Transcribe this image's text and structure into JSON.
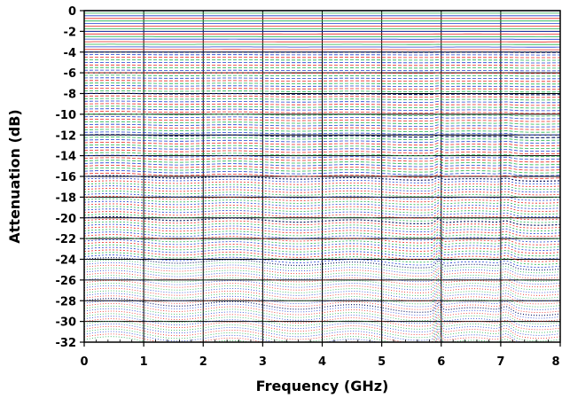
{
  "chart_data": {
    "type": "line",
    "title": "",
    "xlabel": "Frequency (GHz)",
    "ylabel": "Attenuation (dB)",
    "xlim": [
      0,
      8
    ],
    "ylim": [
      -32,
      0
    ],
    "x_ticks": [
      0,
      1,
      2,
      3,
      4,
      5,
      6,
      7,
      8
    ],
    "y_ticks": [
      0,
      -2,
      -4,
      -6,
      -8,
      -10,
      -12,
      -14,
      -16,
      -18,
      -20,
      -22,
      -24,
      -26,
      -28,
      -30,
      -32
    ],
    "x_tick_labels": [
      "0",
      "1",
      "2",
      "3",
      "4",
      "5",
      "6",
      "7",
      "8"
    ],
    "y_tick_labels": [
      "0",
      "-2",
      "-4",
      "-6",
      "-8",
      "-10",
      "-12",
      "-14",
      "-16",
      "-18",
      "-20",
      "-22",
      "-24",
      "-26",
      "-28",
      "-30",
      "-32"
    ],
    "grid": true,
    "legend": "none",
    "series_description_count": 128,
    "state_step_db": 0.25,
    "colors": {
      "red": "#e8261f",
      "green": "#21b24b",
      "blue": "#1f3fd0",
      "navy": "#0b1a66",
      "grid": "#000000"
    }
  }
}
